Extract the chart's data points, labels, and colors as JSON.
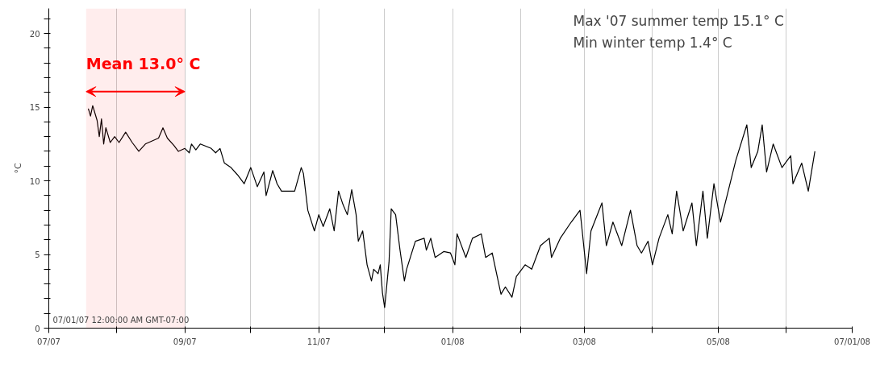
{
  "chart_data": {
    "type": "line",
    "ylabel": "°C",
    "x": [
      "2007-07-19",
      "2007-07-20",
      "2007-07-21",
      "2007-07-23",
      "2007-07-24",
      "2007-07-25",
      "2007-07-26",
      "2007-07-27",
      "2007-07-29",
      "2007-07-31",
      "2007-08-02",
      "2007-08-05",
      "2007-08-08",
      "2007-08-11",
      "2007-08-14",
      "2007-08-20",
      "2007-08-22",
      "2007-08-24",
      "2007-08-27",
      "2007-08-29",
      "2007-09-01",
      "2007-09-03",
      "2007-09-04",
      "2007-09-06",
      "2007-09-08",
      "2007-09-13",
      "2007-09-15",
      "2007-09-17",
      "2007-09-19",
      "2007-09-22",
      "2007-09-25",
      "2007-09-28",
      "2007-10-01",
      "2007-10-04",
      "2007-10-07",
      "2007-10-08",
      "2007-10-11",
      "2007-10-13",
      "2007-10-15",
      "2007-10-21",
      "2007-10-24",
      "2007-10-25",
      "2007-10-27",
      "2007-10-30",
      "2007-11-01",
      "2007-11-03",
      "2007-11-06",
      "2007-11-08",
      "2007-11-10",
      "2007-11-12",
      "2007-11-14",
      "2007-11-16",
      "2007-11-18",
      "2007-11-19",
      "2007-11-21",
      "2007-11-23",
      "2007-11-25",
      "2007-11-26",
      "2007-11-28",
      "2007-11-29",
      "2007-11-30",
      "2007-12-01",
      "2007-12-03",
      "2007-12-04",
      "2007-12-06",
      "2007-12-08",
      "2007-12-10",
      "2007-12-11",
      "2007-12-15",
      "2007-12-19",
      "2007-12-20",
      "2007-12-22",
      "2007-12-24",
      "2007-12-28",
      "2007-12-31",
      "2008-01-02",
      "2008-01-03",
      "2008-01-07",
      "2008-01-10",
      "2008-01-14",
      "2008-01-16",
      "2008-01-19",
      "2008-01-21",
      "2008-01-23",
      "2008-01-25",
      "2008-01-28",
      "2008-01-30",
      "2008-02-03",
      "2008-02-06",
      "2008-02-10",
      "2008-02-14",
      "2008-02-15",
      "2008-02-19",
      "2008-02-24",
      "2008-02-28",
      "2008-02-29",
      "2008-03-02",
      "2008-03-04",
      "2008-03-09",
      "2008-03-11",
      "2008-03-14",
      "2008-03-18",
      "2008-03-22",
      "2008-03-25",
      "2008-03-27",
      "2008-03-30",
      "2008-04-01",
      "2008-04-04",
      "2008-04-08",
      "2008-04-10",
      "2008-04-12",
      "2008-04-15",
      "2008-04-19",
      "2008-04-21",
      "2008-04-24",
      "2008-04-26",
      "2008-04-29",
      "2008-05-02",
      "2008-05-05",
      "2008-05-09",
      "2008-05-14",
      "2008-05-16",
      "2008-05-19",
      "2008-05-21",
      "2008-05-23",
      "2008-05-26",
      "2008-05-30",
      "2008-06-03",
      "2008-06-04",
      "2008-06-08",
      "2008-06-11",
      "2008-06-14"
    ],
    "series": [
      {
        "color": "#000000",
        "values": [
          14.9,
          14.4,
          15.1,
          14.1,
          13.0,
          14.2,
          12.5,
          13.6,
          12.6,
          13.0,
          12.6,
          13.3,
          12.6,
          12.0,
          12.5,
          12.9,
          13.6,
          12.9,
          12.4,
          12.0,
          12.2,
          11.9,
          12.5,
          12.1,
          12.5,
          12.2,
          11.9,
          12.2,
          11.2,
          10.9,
          10.4,
          9.8,
          10.9,
          9.6,
          10.6,
          9.0,
          10.7,
          9.8,
          9.3,
          9.3,
          10.9,
          10.5,
          8.0,
          6.6,
          7.7,
          6.9,
          8.1,
          6.6,
          9.3,
          8.4,
          7.7,
          9.4,
          7.7,
          5.9,
          6.6,
          4.3,
          3.2,
          4.0,
          3.7,
          4.3,
          2.4,
          1.4,
          4.5,
          8.1,
          7.7,
          5.3,
          3.2,
          4.0,
          5.9,
          6.1,
          5.3,
          6.1,
          4.8,
          5.2,
          5.1,
          4.3,
          6.4,
          4.8,
          6.1,
          6.4,
          4.8,
          5.1,
          3.7,
          2.3,
          2.8,
          2.1,
          3.5,
          4.3,
          4.0,
          5.6,
          6.1,
          4.8,
          6.1,
          7.2,
          8.0,
          6.6,
          3.7,
          6.6,
          8.5,
          5.6,
          7.2,
          5.6,
          8.0,
          5.6,
          5.1,
          5.9,
          4.3,
          6.1,
          7.7,
          6.4,
          9.3,
          6.6,
          8.5,
          5.6,
          9.3,
          6.1,
          9.8,
          7.2,
          9.0,
          11.4,
          13.8,
          10.9,
          12.0,
          13.8,
          10.6,
          12.5,
          10.9,
          11.7,
          9.8,
          11.2,
          9.3,
          12.0
        ]
      }
    ],
    "xlim": [
      "2007-07-01",
      "2008-07-01"
    ],
    "xticks": [
      {
        "value": "2007-07-01",
        "label": "07/07"
      },
      {
        "value": "2007-08-01",
        "label": null
      },
      {
        "value": "2007-09-01",
        "label": "09/07"
      },
      {
        "value": "2007-10-01",
        "label": null
      },
      {
        "value": "2007-11-01",
        "label": "11/07"
      },
      {
        "value": "2007-12-01",
        "label": null
      },
      {
        "value": "2008-01-01",
        "label": "01/08"
      },
      {
        "value": "2008-02-01",
        "label": null
      },
      {
        "value": "2008-03-01",
        "label": "03/08"
      },
      {
        "value": "2008-04-01",
        "label": null
      },
      {
        "value": "2008-05-01",
        "label": "05/08"
      },
      {
        "value": "2008-06-01",
        "label": null
      },
      {
        "value": "2008-07-01",
        "label": "07/01/08"
      }
    ],
    "ylim": [
      0,
      21.7
    ],
    "yticks": [
      0,
      {
        "value": 1,
        "label": null
      },
      {
        "value": 2,
        "label": null
      },
      {
        "value": 3,
        "label": null
      },
      {
        "value": 4,
        "label": null
      },
      5,
      {
        "value": 6,
        "label": null
      },
      {
        "value": 7,
        "label": null
      },
      {
        "value": 8,
        "label": null
      },
      {
        "value": 9,
        "label": null
      },
      10,
      {
        "value": 11,
        "label": null
      },
      {
        "value": 12,
        "label": null
      },
      {
        "value": 13,
        "label": null
      },
      {
        "value": 14,
        "label": null
      },
      15,
      {
        "value": 16,
        "label": null
      },
      {
        "value": 17,
        "label": null
      },
      {
        "value": 18,
        "label": null
      },
      {
        "value": 19,
        "label": null
      },
      20,
      {
        "value": 21,
        "label": null
      }
    ],
    "grid": "x",
    "bands": [
      {
        "axis": "x",
        "from": "2007-07-18",
        "to": "2007-09-01",
        "label": "Mean 13.0° C",
        "color": "#ff0000"
      }
    ],
    "annotations": [
      "07/01/07 12:00:00 AM GMT-07:00",
      "Max '07 summer temp 15.1° C",
      "Min winter temp 1.4° C"
    ]
  }
}
